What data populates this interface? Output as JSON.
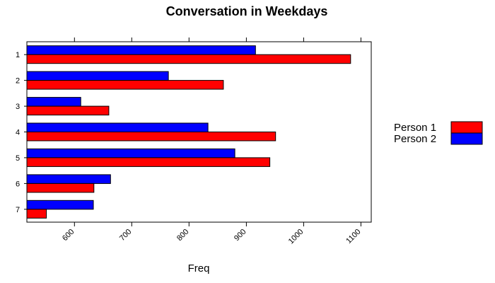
{
  "chart_data": {
    "type": "bar",
    "orientation": "horizontal",
    "title": "Conversation in Weekdays",
    "xlabel": "Freq",
    "ylabel": "",
    "categories": [
      "1",
      "2",
      "3",
      "4",
      "5",
      "6",
      "7"
    ],
    "series": [
      {
        "name": "Person 1",
        "color": "#ff0000",
        "values": [
          1082,
          860,
          660,
          951,
          941,
          634,
          551
        ]
      },
      {
        "name": "Person 2",
        "color": "#0000ff",
        "values": [
          916,
          764,
          611,
          833,
          880,
          663,
          633
        ]
      }
    ],
    "xlim": [
      517,
      1118
    ],
    "xticks": [
      "600",
      "700",
      "800",
      "900",
      "1000",
      "1100"
    ],
    "tick_label_rotation_deg": -45,
    "ticks_on_top": true,
    "grid": false,
    "legend_position": "right"
  }
}
